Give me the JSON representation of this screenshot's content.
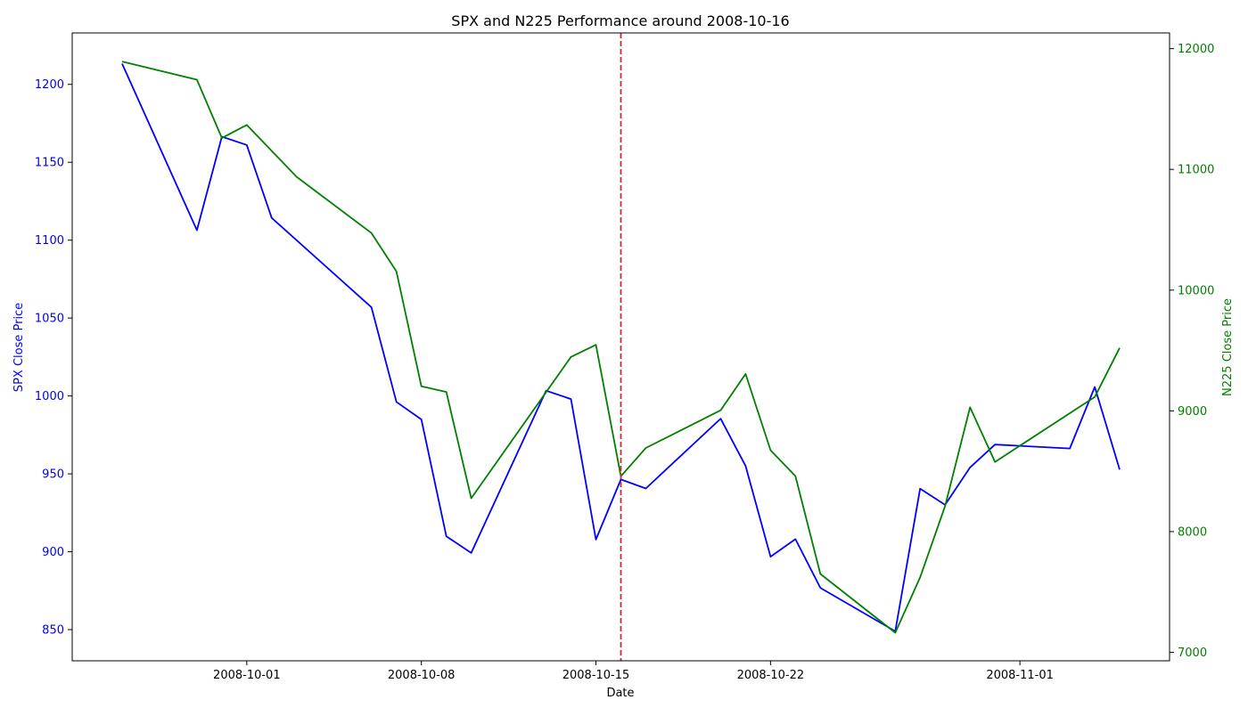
{
  "chart_data": {
    "type": "line",
    "title": "SPX and N225 Performance around 2008-10-16",
    "xlabel": "Date",
    "ylabel_left": "SPX Close Price",
    "ylabel_right": "N225 Close Price",
    "x_ticks": [
      "2008-10-01",
      "2008-10-08",
      "2008-10-15",
      "2008-10-22",
      "2008-11-01"
    ],
    "ylim_left": [
      830,
      1233
    ],
    "ylim_right": [
      6930,
      12130
    ],
    "y_ticks_left": [
      850,
      900,
      950,
      1000,
      1050,
      1100,
      1150,
      1200
    ],
    "y_ticks_right": [
      7000,
      8000,
      9000,
      10000,
      11000,
      12000
    ],
    "xlim": [
      "2008-09-24",
      "2008-11-07"
    ],
    "vline": {
      "date": "2008-10-16",
      "color": "#d62728",
      "style": "dashed"
    },
    "grid": false,
    "series": [
      {
        "axis": "left",
        "color": "#0000ff",
        "points": [
          [
            "2008-09-26",
            1213.3
          ],
          [
            "2008-09-29",
            1106.4
          ],
          [
            "2008-09-30",
            1166.4
          ],
          [
            "2008-10-01",
            1161.1
          ],
          [
            "2008-10-02",
            1114.3
          ],
          [
            "2008-10-06",
            1056.9
          ],
          [
            "2008-10-07",
            996.2
          ],
          [
            "2008-10-08",
            984.9
          ],
          [
            "2008-10-09",
            909.9
          ],
          [
            "2008-10-10",
            899.2
          ],
          [
            "2008-10-13",
            1003.4
          ],
          [
            "2008-10-14",
            998.0
          ],
          [
            "2008-10-15",
            907.8
          ],
          [
            "2008-10-16",
            946.4
          ],
          [
            "2008-10-17",
            940.6
          ],
          [
            "2008-10-20",
            985.4
          ],
          [
            "2008-10-21",
            955.1
          ],
          [
            "2008-10-22",
            896.8
          ],
          [
            "2008-10-23",
            908.1
          ],
          [
            "2008-10-24",
            876.8
          ],
          [
            "2008-10-27",
            848.9
          ],
          [
            "2008-10-28",
            940.5
          ],
          [
            "2008-10-29",
            930.1
          ],
          [
            "2008-10-30",
            954.1
          ],
          [
            "2008-10-31",
            968.8
          ],
          [
            "2008-11-03",
            966.3
          ],
          [
            "2008-11-04",
            1005.8
          ],
          [
            "2008-11-05",
            952.8
          ]
        ]
      },
      {
        "axis": "right",
        "color": "#008000",
        "points": [
          [
            "2008-09-26",
            11893
          ],
          [
            "2008-09-29",
            11743
          ],
          [
            "2008-09-30",
            11260
          ],
          [
            "2008-10-01",
            11368
          ],
          [
            "2008-10-03",
            10938
          ],
          [
            "2008-10-06",
            10473
          ],
          [
            "2008-10-07",
            10155
          ],
          [
            "2008-10-08",
            9203
          ],
          [
            "2008-10-09",
            9157
          ],
          [
            "2008-10-10",
            8276
          ],
          [
            "2008-10-14",
            9447
          ],
          [
            "2008-10-15",
            9547
          ],
          [
            "2008-10-16",
            8458
          ],
          [
            "2008-10-17",
            8693
          ],
          [
            "2008-10-20",
            9005
          ],
          [
            "2008-10-21",
            9306
          ],
          [
            "2008-10-22",
            8674
          ],
          [
            "2008-10-23",
            8460
          ],
          [
            "2008-10-24",
            7649
          ],
          [
            "2008-10-27",
            7162
          ],
          [
            "2008-10-28",
            7621
          ],
          [
            "2008-10-29",
            8211
          ],
          [
            "2008-10-30",
            9029
          ],
          [
            "2008-10-31",
            8577
          ],
          [
            "2008-11-04",
            9115
          ],
          [
            "2008-11-05",
            9521
          ]
        ]
      }
    ]
  }
}
